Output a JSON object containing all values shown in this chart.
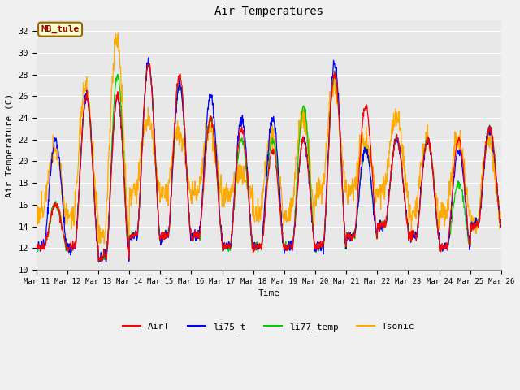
{
  "title": "Air Temperatures",
  "xlabel": "Time",
  "ylabel": "Air Temperature (C)",
  "annotation": "MB_tule",
  "ylim": [
    10,
    33
  ],
  "yticks": [
    10,
    12,
    14,
    16,
    18,
    20,
    22,
    24,
    26,
    28,
    30,
    32
  ],
  "start_day": 11,
  "end_day": 26,
  "points_per_day": 96,
  "series_colors": {
    "AirT": "#ff0000",
    "li75_t": "#0000ff",
    "li77_temp": "#00cc00",
    "Tsonic": "#ffaa00"
  },
  "bg_color": "#e8e8e8",
  "grid_color": "#ffffff",
  "font_family": "monospace",
  "day_peaks_airt": [
    16,
    26,
    26,
    29,
    28,
    24,
    23,
    21,
    22,
    28,
    25,
    22,
    22,
    22,
    23
  ],
  "day_mins_airt": [
    12,
    12,
    11,
    13,
    13,
    13,
    12,
    12,
    12,
    12,
    13,
    14,
    13,
    12,
    14
  ],
  "day_peaks_li75": [
    22,
    26,
    26,
    29,
    27,
    26,
    24,
    24,
    22,
    29,
    21,
    22,
    22,
    21,
    23
  ],
  "day_mins_li75": [
    12,
    12,
    11,
    13,
    13,
    13,
    12,
    12,
    12,
    12,
    13,
    14,
    13,
    12,
    14
  ],
  "day_peaks_li77": [
    16,
    26,
    28,
    29,
    27,
    24,
    22,
    22,
    25,
    28,
    21,
    22,
    22,
    18,
    23
  ],
  "day_mins_li77": [
    12,
    12,
    11,
    13,
    13,
    13,
    12,
    12,
    12,
    12,
    13,
    14,
    13,
    12,
    14
  ],
  "day_peaks_ts": [
    21,
    27,
    31.5,
    24,
    23,
    23,
    19,
    22,
    24,
    27,
    22,
    24,
    22,
    22,
    22
  ],
  "day_mins_ts": [
    15,
    15,
    13,
    17,
    17,
    17,
    17,
    15,
    15,
    17,
    17,
    17,
    15,
    15,
    14
  ],
  "figwidth": 6.4,
  "figheight": 4.8,
  "dpi": 100
}
